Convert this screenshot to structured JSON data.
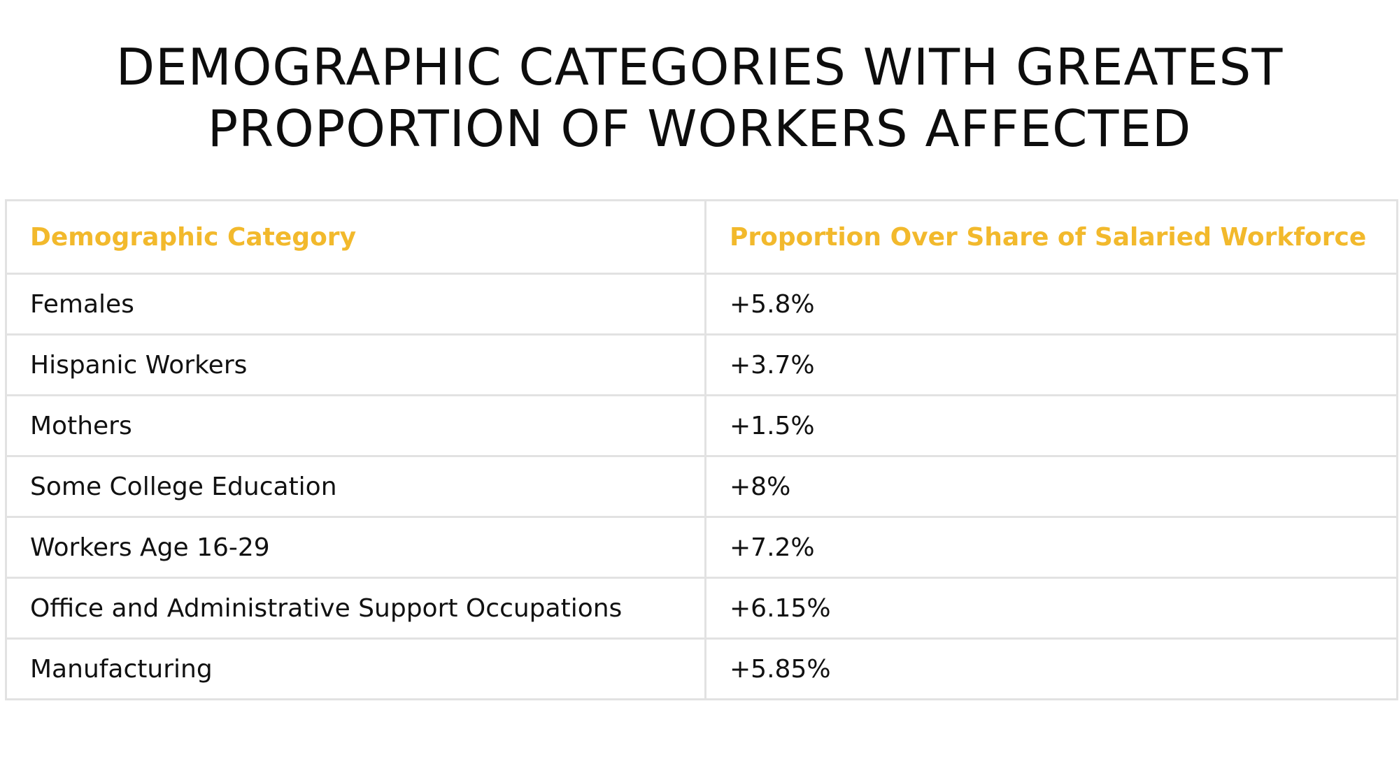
{
  "title_line1": "DEMOGRAPHIC CATEGORIES WITH GREATEST",
  "title_line2": "PROPORTION OF WORKERS AFFECTED",
  "colors": {
    "header_text": "#f2b92c",
    "body_text": "#111111",
    "grid": "#e2e2e2",
    "background": "#ffffff"
  },
  "chart_data": {
    "type": "table",
    "columns": [
      "Demographic Category",
      "Proportion Over Share of Salaried Workforce"
    ],
    "rows": [
      [
        "Females",
        "+5.8%"
      ],
      [
        "Hispanic Workers",
        "+3.7%"
      ],
      [
        "Mothers",
        "+1.5%"
      ],
      [
        "Some College Education",
        "+8%"
      ],
      [
        "Workers Age 16-29",
        "+7.2%"
      ],
      [
        "Office and Administrative Support Occupations",
        "+6.15%"
      ],
      [
        "Manufacturing",
        "+5.85%"
      ]
    ]
  }
}
